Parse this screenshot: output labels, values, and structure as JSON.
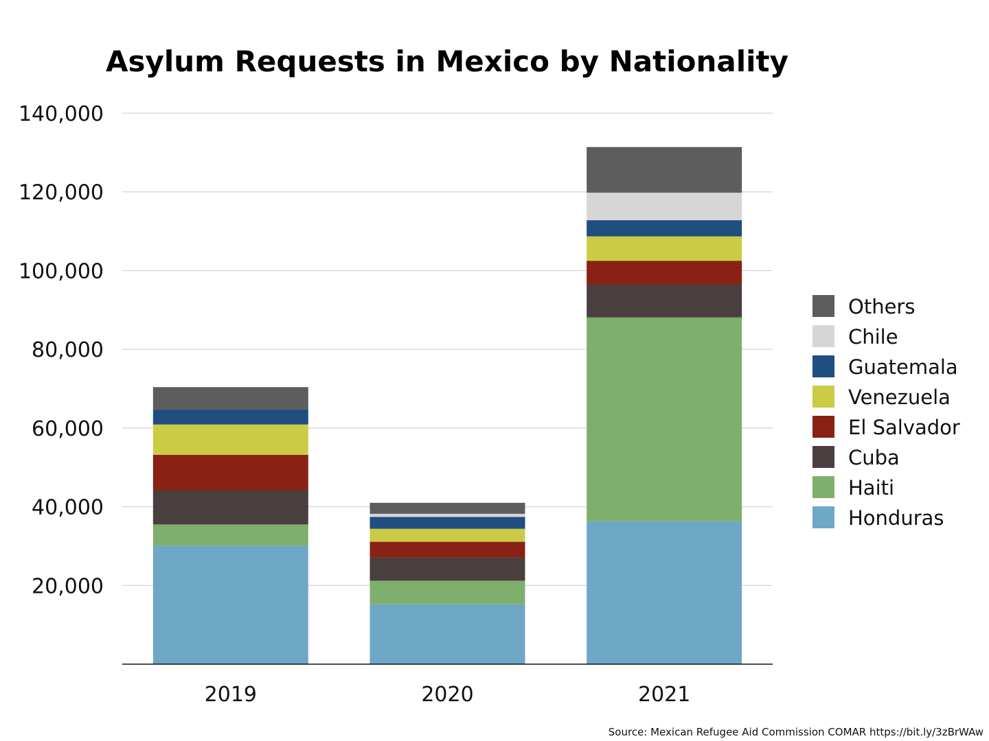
{
  "chart_data": {
    "type": "bar",
    "stacked": true,
    "title": "Asylum Requests in Mexico by Nationality",
    "categories": [
      "2019",
      "2020",
      "2021"
    ],
    "series": [
      {
        "name": "Honduras",
        "color": "#6fa7c7",
        "values": [
          30100,
          15200,
          36300
        ]
      },
      {
        "name": "Haiti",
        "color": "#7faf6d",
        "values": [
          5400,
          6000,
          51800
        ]
      },
      {
        "name": "Cuba",
        "color": "#4a3f3f",
        "values": [
          8700,
          5900,
          8400
        ]
      },
      {
        "name": "El Salvador",
        "color": "#892214",
        "values": [
          9000,
          4000,
          6000
        ]
      },
      {
        "name": "Venezuela",
        "color": "#cccb45",
        "values": [
          7700,
          3300,
          6200
        ]
      },
      {
        "name": "Guatemala",
        "color": "#1f4e7f",
        "values": [
          3800,
          3000,
          4100
        ]
      },
      {
        "name": "Chile",
        "color": "#d6d6d6",
        "values": [
          0,
          800,
          7000
        ]
      },
      {
        "name": "Others",
        "color": "#5d5d5d",
        "values": [
          5700,
          2800,
          11600
        ]
      }
    ],
    "y_ticks": [
      "20,000",
      "40,000",
      "60,000",
      "80,000",
      "100,000",
      "120,000",
      "140,000"
    ],
    "y_tick_values": [
      20000,
      40000,
      60000,
      80000,
      100000,
      120000,
      140000
    ],
    "ylim": [
      0,
      140000
    ],
    "xlabel": "",
    "ylabel": "",
    "grid": true,
    "legend_position": "right",
    "legend_order": [
      "Others",
      "Chile",
      "Guatemala",
      "Venezuela",
      "El Salvador",
      "Cuba",
      "Haiti",
      "Honduras"
    ]
  },
  "source": "Source: Mexican Refugee Aid Commission COMAR https://bit.ly/3zBrWAw"
}
